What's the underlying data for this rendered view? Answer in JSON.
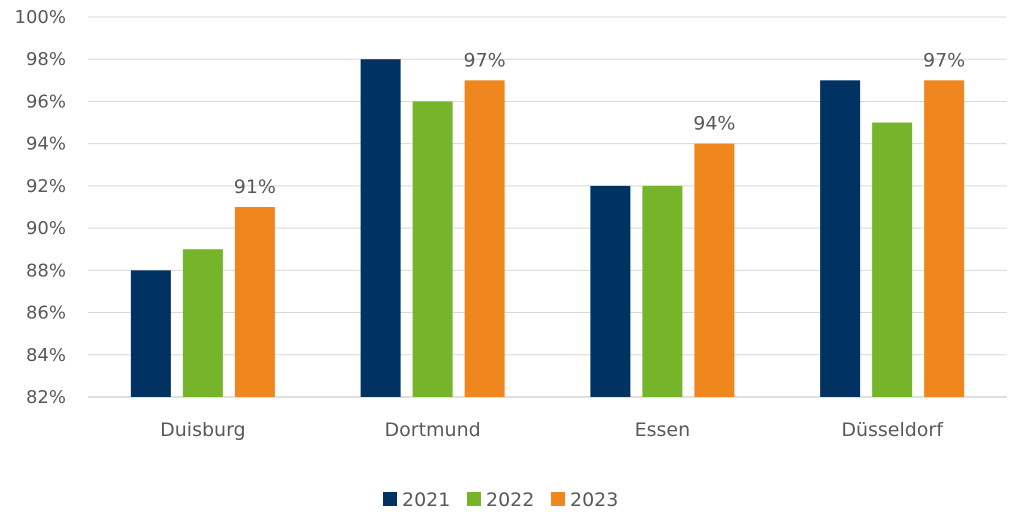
{
  "chart_data": {
    "type": "bar",
    "title": "",
    "xlabel": "",
    "ylabel": "",
    "categories": [
      "Duisburg",
      "Dortmund",
      "Essen",
      "Düsseldorf"
    ],
    "series": [
      {
        "name": "2021",
        "color": "#003362",
        "values": [
          88,
          98,
          92,
          97
        ]
      },
      {
        "name": "2022",
        "color": "#76B52A",
        "values": [
          89,
          96,
          92,
          95
        ]
      },
      {
        "name": "2023",
        "color": "#EF861E",
        "values": [
          91,
          97,
          94,
          97
        ]
      }
    ],
    "ylim": [
      82,
      100
    ],
    "yticks": [
      "82%",
      "84%",
      "86%",
      "88%",
      "90%",
      "92%",
      "94%",
      "96%",
      "98%",
      "100%"
    ],
    "data_labels": {
      "series": "2023",
      "texts": [
        "91%",
        "97%",
        "94%",
        "97%"
      ]
    },
    "grid": true,
    "legend_position": "bottom"
  }
}
